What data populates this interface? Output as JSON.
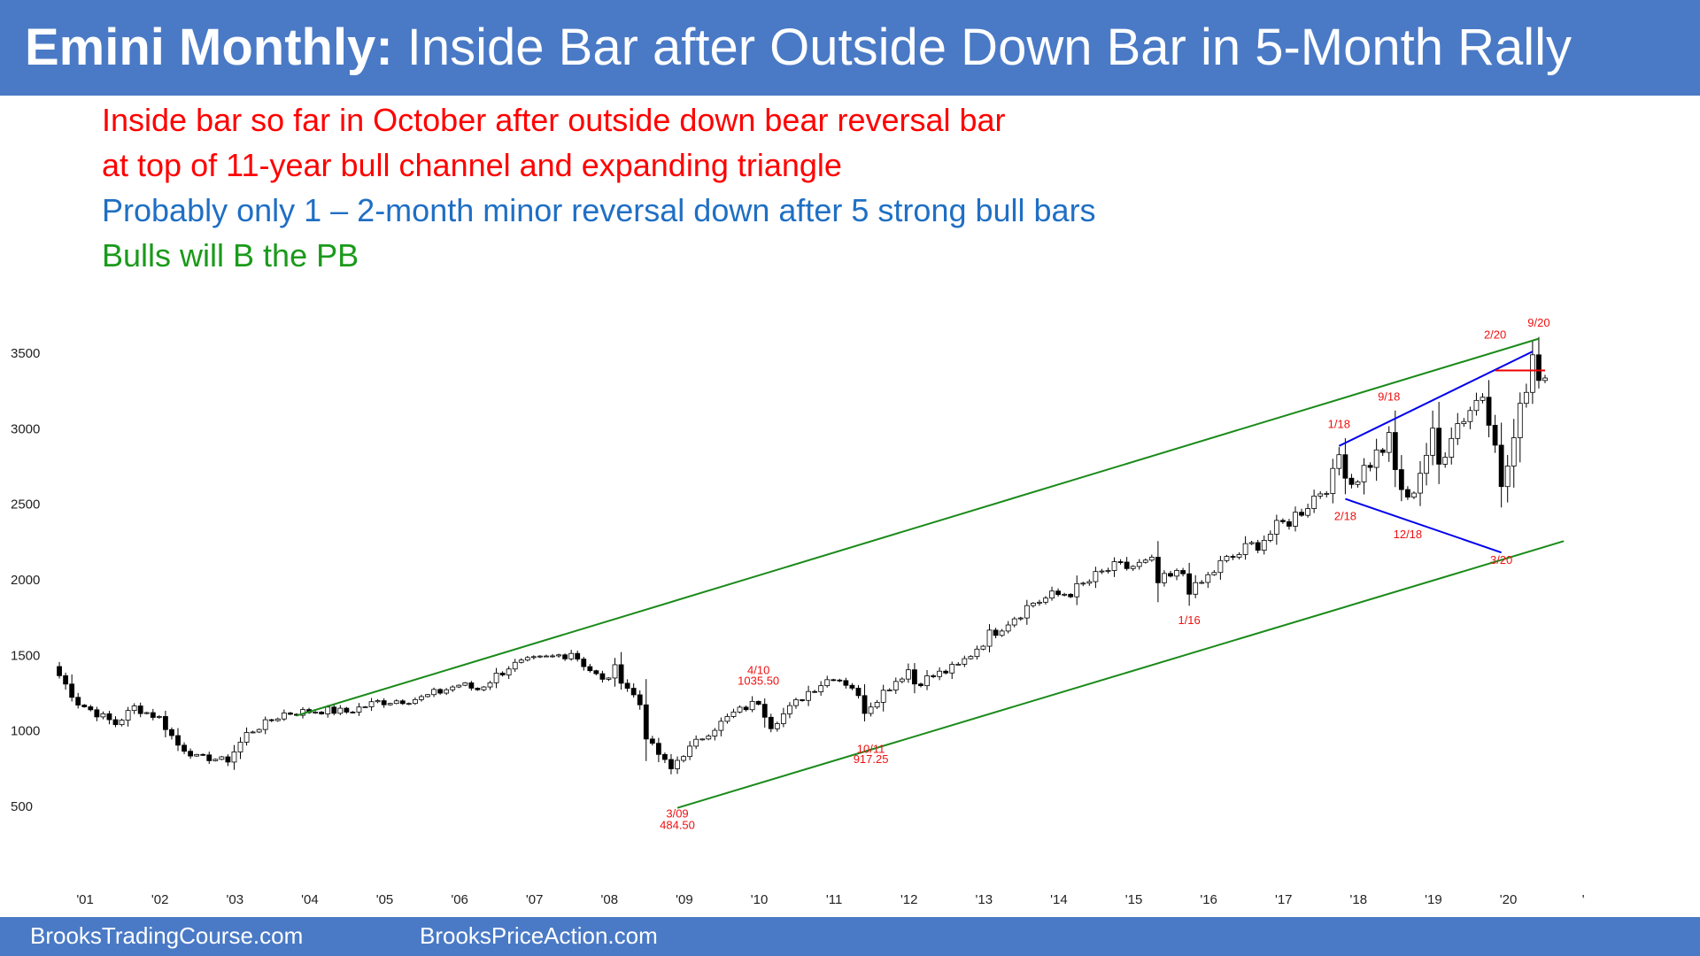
{
  "header": {
    "title_bold": "Emini Monthly:",
    "title_rest": " Inside Bar after Outside Down Bar in 5-Month Rally",
    "background": "#4a7ac6"
  },
  "annotations": [
    {
      "text": "Inside bar so far in October after outside down bear reversal bar",
      "color": "#ff0000"
    },
    {
      "text": "at top of 11-year bull channel and expanding triangle",
      "color": "#ff0000"
    },
    {
      "text": "Probably only 1 – 2-month minor reversal down after 5 strong bull bars",
      "color": "#1f6fc4"
    },
    {
      "text": "Bulls will B the PB",
      "color": "#1a9a1a"
    }
  ],
  "footer": {
    "left": "BrooksTradingCourse.com",
    "right": "BrooksPriceAction.com"
  },
  "chart_data": {
    "type": "candlestick",
    "interval": "monthly",
    "x_range": [
      "2000-11",
      "2020-10"
    ],
    "y_ticks": [
      500,
      1000,
      1500,
      2000,
      2500,
      3000,
      3500
    ],
    "x_tick_labels": [
      "'01",
      "'02",
      "'03",
      "'04",
      "'05",
      "'06",
      "'07",
      "'08",
      "'09",
      "'10",
      "'11",
      "'12",
      "'13",
      "'14",
      "'15",
      "'16",
      "'17",
      "'18",
      "'19",
      "'20",
      "'"
    ],
    "price_path": [
      [
        "2000-11",
        1420
      ],
      [
        "2001-03",
        1180
      ],
      [
        "2001-09",
        1040
      ],
      [
        "2001-12",
        1150
      ],
      [
        "2002-04",
        1080
      ],
      [
        "2002-07",
        900
      ],
      [
        "2002-10",
        820
      ],
      [
        "2003-03",
        800
      ],
      [
        "2003-06",
        975
      ],
      [
        "2003-12",
        1110
      ],
      [
        "2004-06",
        1130
      ],
      [
        "2004-10",
        1120
      ],
      [
        "2005-03",
        1185
      ],
      [
        "2005-10",
        1210
      ],
      [
        "2006-04",
        1300
      ],
      [
        "2006-07",
        1270
      ],
      [
        "2006-12",
        1420
      ],
      [
        "2007-07",
        1480
      ],
      [
        "2007-10",
        1520
      ],
      [
        "2008-03",
        1320
      ],
      [
        "2008-05",
        1400
      ],
      [
        "2008-09",
        1170
      ],
      [
        "2008-10",
        960
      ],
      [
        "2008-11",
        890
      ],
      [
        "2009-02",
        740
      ],
      [
        "2009-03",
        800
      ],
      [
        "2009-06",
        920
      ],
      [
        "2009-12",
        1110
      ],
      [
        "2010-04",
        1190
      ],
      [
        "2010-06",
        1030
      ],
      [
        "2010-12",
        1255
      ],
      [
        "2011-04",
        1360
      ],
      [
        "2011-07",
        1290
      ],
      [
        "2011-09",
        1130
      ],
      [
        "2011-12",
        1255
      ],
      [
        "2012-04",
        1400
      ],
      [
        "2012-05",
        1310
      ],
      [
        "2012-12",
        1420
      ],
      [
        "2013-05",
        1630
      ],
      [
        "2013-12",
        1845
      ],
      [
        "2014-07",
        1930
      ],
      [
        "2014-12",
        2060
      ],
      [
        "2015-07",
        2100
      ],
      [
        "2015-08",
        1970
      ],
      [
        "2015-12",
        2040
      ],
      [
        "2016-01",
        1940
      ],
      [
        "2016-02",
        1930
      ],
      [
        "2016-06",
        2095
      ],
      [
        "2016-12",
        2240
      ],
      [
        "2017-06",
        2420
      ],
      [
        "2017-12",
        2670
      ],
      [
        "2018-01",
        2820
      ],
      [
        "2018-03",
        2640
      ],
      [
        "2018-09",
        2910
      ],
      [
        "2018-10",
        2710
      ],
      [
        "2018-12",
        2500
      ],
      [
        "2019-04",
        2940
      ],
      [
        "2019-05",
        2750
      ],
      [
        "2019-07",
        2980
      ],
      [
        "2019-12",
        3230
      ],
      [
        "2020-02",
        2950
      ],
      [
        "2020-03",
        2580
      ],
      [
        "2020-06",
        3100
      ],
      [
        "2020-08",
        3500
      ],
      [
        "2020-09",
        3360
      ],
      [
        "2020-10",
        3330
      ]
    ],
    "trendlines": [
      {
        "name": "upper channel",
        "color": "#1a8a1a",
        "from": [
          "2004-02",
          1095
        ],
        "to": [
          "2020-09",
          3590
        ]
      },
      {
        "name": "lower channel",
        "color": "#1a8a1a",
        "from": [
          "2009-03",
          484.5
        ],
        "to": [
          "2021-01",
          2250
        ]
      },
      {
        "name": "triangle upper",
        "color": "#0000ee",
        "from": [
          "2018-01",
          2880
        ],
        "to": [
          "2020-08",
          3505
        ]
      },
      {
        "name": "triangle lower",
        "color": "#0000ee",
        "from": [
          "2018-02",
          2530
        ],
        "to": [
          "2020-03",
          2175
        ]
      },
      {
        "name": "horizontal",
        "color": "#ee0000",
        "from": [
          "2020-02",
          3380
        ],
        "to": [
          "2020-10",
          3380
        ]
      }
    ],
    "labels": [
      {
        "text": "9/20",
        "at": [
          "2020-09",
          3670
        ]
      },
      {
        "text": "2/20",
        "at": [
          "2020-02",
          3590
        ]
      },
      {
        "text": "9/18",
        "at": [
          "2018-09",
          3180
        ]
      },
      {
        "text": "1/18",
        "at": [
          "2018-01",
          3000
        ]
      },
      {
        "text": "2/18",
        "at": [
          "2018-02",
          2390
        ]
      },
      {
        "text": "12/18",
        "at": [
          "2018-12",
          2270
        ]
      },
      {
        "text": "3/20",
        "at": [
          "2020-03",
          2100
        ]
      },
      {
        "text": "1/16",
        "at": [
          "2016-01",
          1700
        ]
      },
      {
        "text": "4/10",
        "at": [
          "2010-04",
          1370
        ]
      },
      {
        "text": "1035.50",
        "at": [
          "2010-04",
          1300
        ]
      },
      {
        "text": "10/11",
        "at": [
          "2011-10",
          850
        ]
      },
      {
        "text": "917.25",
        "at": [
          "2011-10",
          780
        ]
      },
      {
        "text": "3/09",
        "at": [
          "2009-03",
          420
        ]
      },
      {
        "text": "484.50",
        "at": [
          "2009-03",
          345
        ]
      }
    ],
    "colors": {
      "bull": "#ffffff",
      "bear": "#000000",
      "label": "#ee1111",
      "channel": "#1a8a1a",
      "triangle": "#0000ee"
    }
  }
}
